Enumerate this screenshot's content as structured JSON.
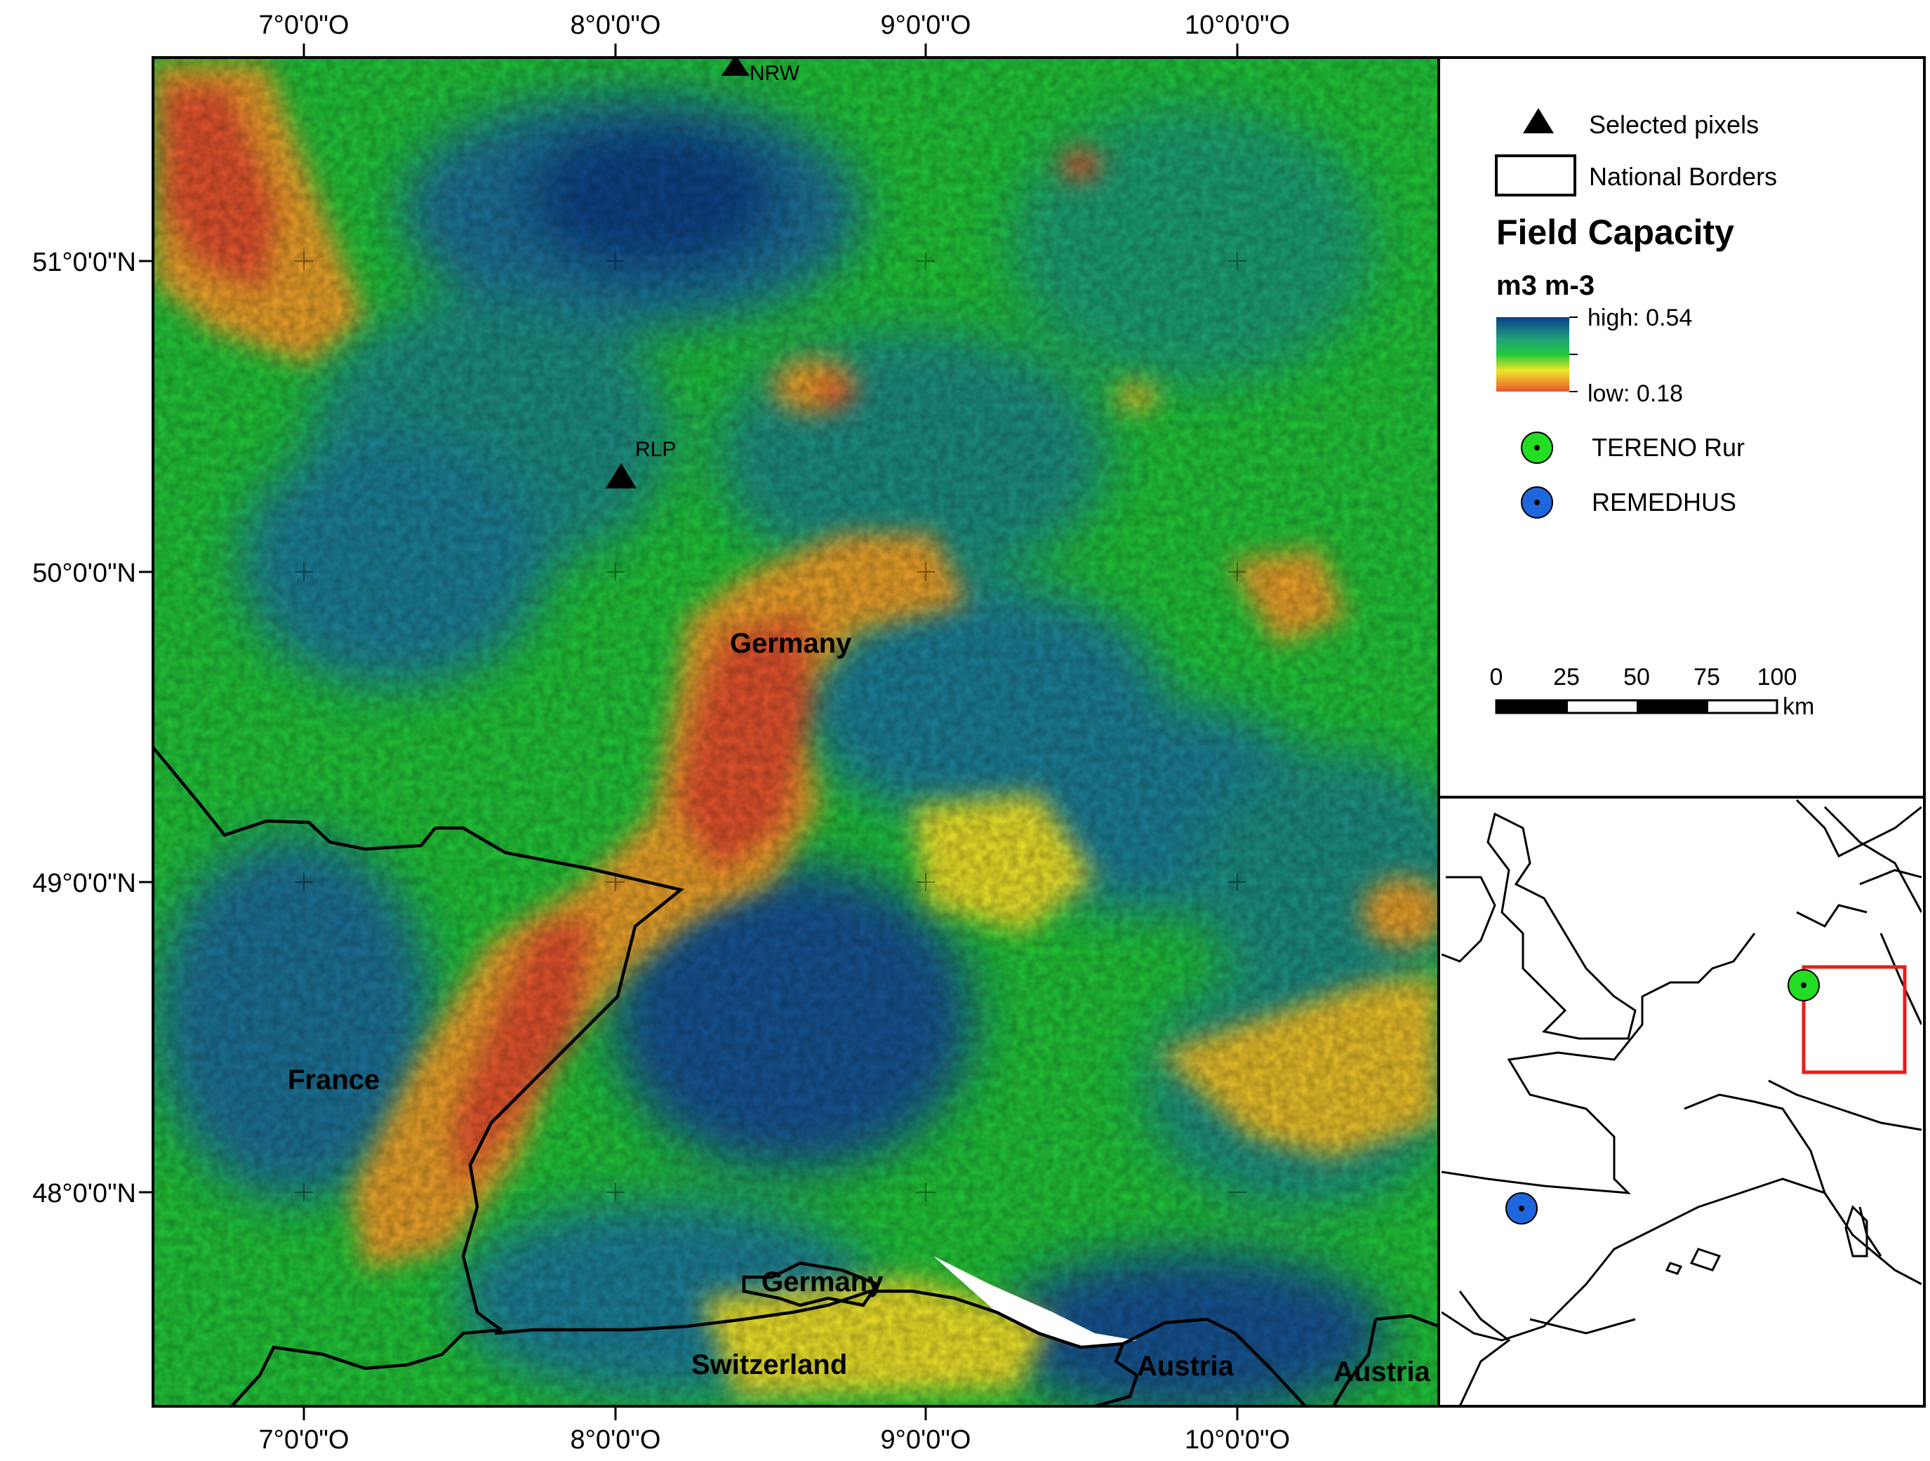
{
  "axes": {
    "longitude_labels": [
      "7°0'0\"O",
      "8°0'0\"O",
      "9°0'0\"O",
      "10°0'0\"O"
    ],
    "latitude_labels": [
      "51°0'0\"N",
      "50°0'0\"N",
      "49°0'0\"N",
      "48°0'0\"N"
    ]
  },
  "places": {
    "germany_main": "Germany",
    "france": "France",
    "germany_south": "Germany",
    "switzerland": "Switzerland",
    "austria_1": "Austria",
    "austria_2": "Austria"
  },
  "sites": {
    "nrw": "NRW",
    "rlp": "RLP"
  },
  "legend": {
    "selected_pixels": "Selected pixels",
    "national_borders": "National Borders",
    "title": "Field Capacity",
    "unit": "m3 m-3",
    "high_label": "high: 0.54",
    "low_label": "low: 0.18",
    "tereno": "TERENO Rur",
    "remedhus": "REMEDHUS",
    "scale_ticks": [
      "0",
      "25",
      "50",
      "75",
      "100"
    ],
    "scale_unit": "km"
  },
  "colors": {
    "high": "#0b3d8c",
    "mid_high": "#1fa37a",
    "mid": "#22c93a",
    "mid_low": "#f0e62a",
    "low": "#e8552d",
    "tereno": "#22dd22",
    "remedhus": "#1e66dd",
    "inset_box": "#e3201b"
  }
}
